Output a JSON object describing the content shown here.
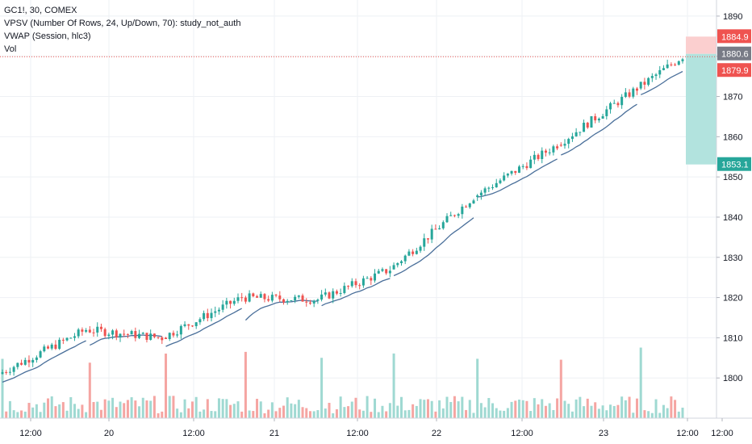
{
  "legend": {
    "symbol": "GC1!, 30, COMEX",
    "vpsv": "VPSV (Number Of Rows, 24, Up/Down, 70): study_not_auth",
    "vwap": "VWAP (Session, hlc3)",
    "vol": "Vol"
  },
  "colors": {
    "up": "#26a69a",
    "down": "#ef5350",
    "vol_up": "#9fd9d2",
    "vol_down": "#f5a5a2",
    "vwap": "#4a6f9a",
    "grid": "#eef0f4",
    "price_line": "#ef5350",
    "target_box": "#b2e3de",
    "stop_box": "#fbcfcf"
  },
  "price_labels": {
    "stop": "1884.9",
    "entry": "1880.6",
    "current": "1879.9",
    "target": "1853.1"
  },
  "chart_data": {
    "type": "candlestick",
    "title": "GC1!, 30, COMEX",
    "ylim": [
      1790,
      1894
    ],
    "y_ticks": [
      1800,
      1810,
      1820,
      1830,
      1840,
      1850,
      1860,
      1870,
      1880,
      1890
    ],
    "x_ticks": [
      "12:00",
      "20",
      "12:00",
      "21",
      "12:00",
      "22",
      "12:00",
      "23",
      "12:00",
      "12:00"
    ],
    "current_price": 1879.9,
    "position": {
      "entry": 1880.6,
      "stop": 1884.9,
      "target": 1853.1
    },
    "segments": [
      {
        "from": 1801,
        "to": 1812,
        "vwap_start": 1798.5
      },
      {
        "from": 1812,
        "to": 1810,
        "vwap_start": 1807.5
      },
      {
        "from": 1810,
        "to": 1820,
        "vwap_start": 1807.5
      },
      {
        "from": 1820,
        "to": 1819.5,
        "vwap_start": 1813.5
      },
      {
        "from": 1819.5,
        "to": 1827,
        "vwap_start": 1817.5
      },
      {
        "from": 1827,
        "to": 1845,
        "vwap_start": 1825
      },
      {
        "from": 1845,
        "to": 1858,
        "vwap_start": 1845
      },
      {
        "from": 1858,
        "to": 1872,
        "vwap_start": 1855
      },
      {
        "from": 1872,
        "to": 1880,
        "vwap_start": 1870
      }
    ]
  }
}
